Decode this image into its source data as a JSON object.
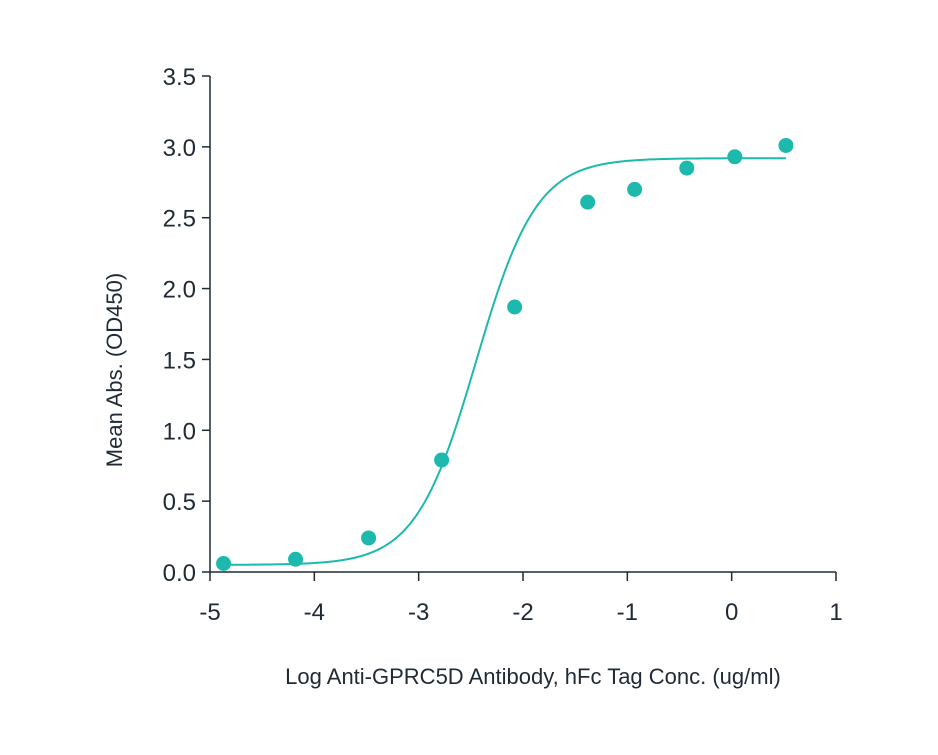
{
  "chart_data": {
    "type": "scatter",
    "title": "",
    "xlabel": "Log Anti-GPRC5D Antibody, hFc Tag Conc. (ug/ml)",
    "ylabel": "Mean Abs. (OD450)",
    "xlim": [
      -5,
      1
    ],
    "ylim": [
      0,
      3.5
    ],
    "xticks": [
      -5,
      -4,
      -3,
      -2,
      -1,
      0,
      1
    ],
    "xtick_labels": [
      "-5",
      "-4",
      "-3",
      "-2",
      "-1",
      "0",
      "1"
    ],
    "yticks": [
      0,
      0.5,
      1,
      1.5,
      2,
      2.5,
      3,
      3.5
    ],
    "ytick_labels": [
      "0.0",
      "0.5",
      "1.0",
      "1.5",
      "2.0",
      "2.5",
      "3.0",
      "3.5"
    ],
    "grid": false,
    "legend": "none",
    "series": [
      {
        "x": [
          -4.87,
          -4.18,
          -3.48,
          -2.78,
          -2.08,
          -1.38,
          -0.93,
          -0.43,
          0.03,
          0.52
        ],
        "y": [
          0.06,
          0.09,
          0.24,
          0.79,
          1.87,
          2.61,
          2.7,
          2.85,
          2.93,
          3.01
        ]
      }
    ],
    "fit_curve": {
      "model": "4PL",
      "bottom": 0.05,
      "top": 2.92,
      "log_ec50": -2.45,
      "hill_slope": 1.5,
      "x_range": [
        -4.87,
        0.52
      ]
    },
    "colors": {
      "accent": "#1db9ad",
      "axis": "#1f2a36",
      "text": "#1f2a36"
    }
  }
}
